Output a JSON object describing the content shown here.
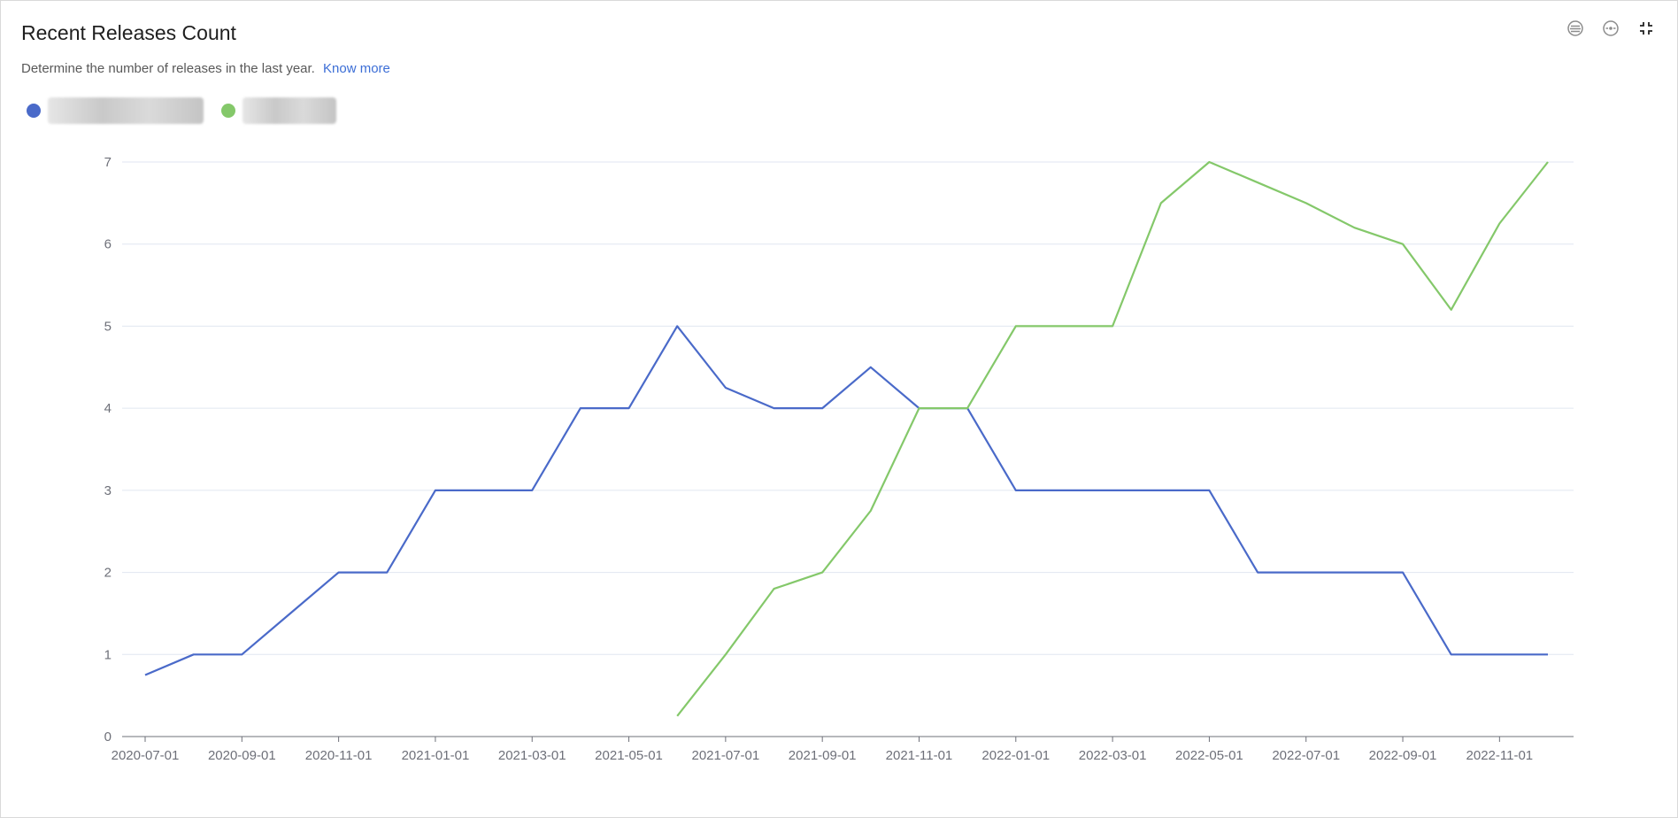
{
  "header": {
    "title": "Recent Releases Count",
    "subtitle": "Determine the number of releases in the last year.",
    "know_more": "Know more"
  },
  "toolbar": {
    "icons": [
      "list-circle-icon",
      "target-circle-icon",
      "collapse-icon"
    ]
  },
  "colors": {
    "grid": "#e0e6f1",
    "axis": "#6e7079",
    "series_1": "#4a6ac9",
    "series_2": "#84c86a"
  },
  "legend": {
    "items": [
      {
        "label": "",
        "color": "#4a6ac9"
      },
      {
        "label": "",
        "color": "#84c86a"
      }
    ]
  },
  "chart_data": {
    "type": "line",
    "title": "",
    "xlabel": "",
    "ylabel": "",
    "ylim": [
      0,
      7
    ],
    "yticks": [
      0,
      1,
      2,
      3,
      4,
      5,
      6,
      7
    ],
    "grid": true,
    "legend_position": "top-left",
    "x": [
      "2020-07-01",
      "2020-08-01",
      "2020-09-01",
      "2020-10-01",
      "2020-11-01",
      "2020-12-01",
      "2021-01-01",
      "2021-02-01",
      "2021-03-01",
      "2021-04-01",
      "2021-05-01",
      "2021-06-01",
      "2021-07-01",
      "2021-08-01",
      "2021-09-01",
      "2021-10-01",
      "2021-11-01",
      "2021-12-01",
      "2022-01-01",
      "2022-02-01",
      "2022-03-01",
      "2022-04-01",
      "2022-05-01",
      "2022-06-01",
      "2022-07-01",
      "2022-08-01",
      "2022-09-01",
      "2022-10-01",
      "2022-11-01",
      "2022-12-01"
    ],
    "x_tick_labels": [
      "2020-07-01",
      "2020-09-01",
      "2020-11-01",
      "2021-01-01",
      "2021-03-01",
      "2021-05-01",
      "2021-07-01",
      "2021-09-01",
      "2021-11-01",
      "2022-01-01",
      "2022-03-01",
      "2022-05-01",
      "2022-07-01",
      "2022-09-01",
      "2022-11-01"
    ],
    "series": [
      {
        "color": "#4a6ac9",
        "values": [
          0.75,
          1,
          1,
          1.5,
          2,
          2,
          3,
          3,
          3,
          4,
          4,
          5,
          4.25,
          4,
          4,
          4.5,
          4,
          4,
          3,
          3,
          3,
          3,
          3,
          2,
          2,
          2,
          2,
          1,
          1,
          1
        ]
      },
      {
        "color": "#84c86a",
        "values": [
          null,
          null,
          null,
          null,
          null,
          null,
          null,
          null,
          null,
          null,
          null,
          0.25,
          1,
          1.8,
          2,
          2.75,
          4,
          4,
          5,
          5,
          5,
          6.5,
          7,
          6.75,
          6.5,
          6.2,
          6,
          5.2,
          6.25,
          7
        ]
      }
    ]
  }
}
